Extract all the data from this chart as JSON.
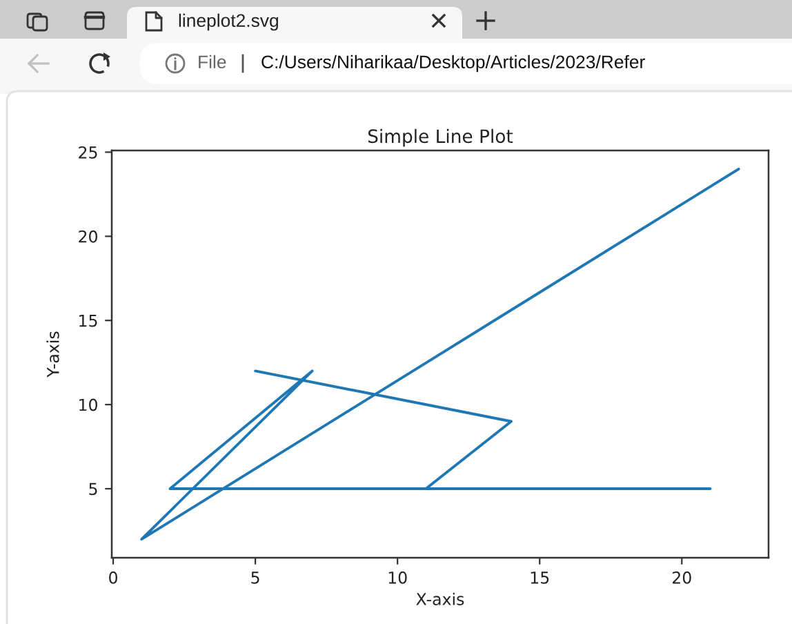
{
  "chart_data": {
    "type": "line",
    "title": "Simple Line Plot",
    "xlabel": "X-axis",
    "ylabel": "Y-axis",
    "x": [
      5,
      14,
      11,
      21,
      2,
      7,
      1,
      22
    ],
    "values": [
      12,
      9,
      5,
      5,
      5,
      12,
      2,
      24
    ],
    "color": "#1f77b4",
    "xlim": [
      -0.05,
      23.05
    ],
    "ylim": [
      0.9,
      25.1
    ],
    "xticks": [
      0,
      5,
      10,
      15,
      20
    ],
    "yticks": [
      5,
      10,
      15,
      20,
      25
    ],
    "marker": "none",
    "line_style": "solid",
    "annotations": [
      "lineplot2.svg",
      "File",
      "C:/Users/Niharikaa/Desktop/Articles/2023/Refer"
    ]
  }
}
